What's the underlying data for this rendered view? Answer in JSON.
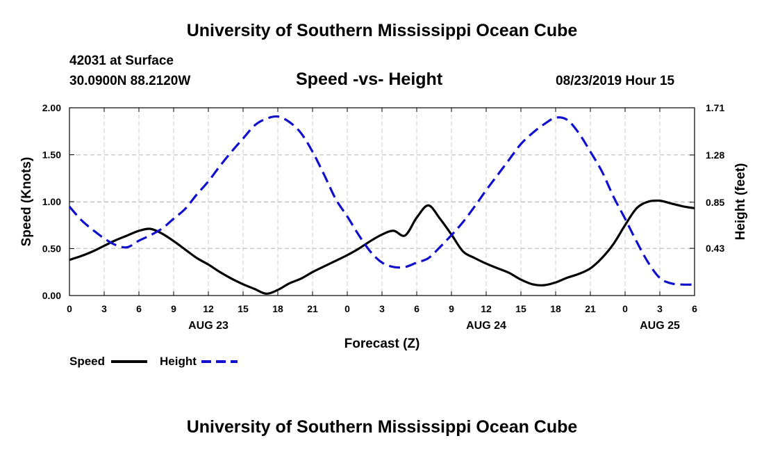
{
  "header": {
    "title": "University of Southern Mississippi Ocean Cube",
    "station": "42031 at Surface",
    "coords": "30.0900N 88.2120W",
    "chart_title": "Speed -vs- Height",
    "datetime": "08/23/2019 Hour 15"
  },
  "footer": {
    "title": "University of Southern Mississippi Ocean Cube"
  },
  "colors": {
    "speed": "#000000",
    "height": "#1010cc",
    "grid": "#c8c8c8"
  },
  "chart_data": {
    "type": "line",
    "title": "Speed -vs- Height",
    "xlabel": "Forecast (Z)",
    "ylabel": "Speed (Knots)",
    "y2label": "Height (feet)",
    "xlim": [
      0,
      54
    ],
    "ylim": [
      0,
      2.0
    ],
    "y2lim": [
      0,
      1.71
    ],
    "x_ticks": [
      0,
      3,
      6,
      9,
      12,
      15,
      18,
      21,
      24,
      27,
      30,
      33,
      36,
      39,
      42,
      45,
      48,
      51,
      54
    ],
    "x_tick_labels": [
      "0",
      "3",
      "6",
      "9",
      "12",
      "15",
      "18",
      "21",
      "0",
      "3",
      "6",
      "9",
      "12",
      "15",
      "18",
      "21",
      "0",
      "3",
      "6"
    ],
    "y_ticks": [
      0,
      0.5,
      1.0,
      1.5,
      2.0
    ],
    "y_tick_labels": [
      "0.00",
      "0.50",
      "1.00",
      "1.50",
      "2.00"
    ],
    "y2_ticks": [
      0.43,
      0.85,
      1.28,
      1.71
    ],
    "y2_tick_labels": [
      "0.43",
      "0.85",
      "1.28",
      "1.71"
    ],
    "date_labels": [
      {
        "x": 12,
        "label": "AUG 23"
      },
      {
        "x": 36,
        "label": "AUG 24"
      },
      {
        "x": 51,
        "label": "AUG 25"
      }
    ],
    "grid": true,
    "legend_position": "bottom-left",
    "series": [
      {
        "name": "Speed",
        "axis": "left",
        "style": "solid",
        "x": [
          0,
          1,
          2,
          3,
          4,
          5,
          6,
          7,
          8,
          9,
          10,
          11,
          12,
          13,
          14,
          15,
          16,
          17,
          18,
          19,
          20,
          21,
          22,
          23,
          24,
          25,
          26,
          27,
          28,
          29,
          30,
          31,
          32,
          33,
          34,
          35,
          36,
          37,
          38,
          39,
          40,
          41,
          42,
          43,
          44,
          45,
          46,
          47,
          48,
          49,
          50,
          51,
          52,
          53,
          54
        ],
        "values": [
          0.38,
          0.42,
          0.47,
          0.53,
          0.59,
          0.64,
          0.69,
          0.71,
          0.66,
          0.58,
          0.49,
          0.4,
          0.33,
          0.25,
          0.18,
          0.12,
          0.07,
          0.02,
          0.06,
          0.13,
          0.18,
          0.25,
          0.31,
          0.37,
          0.43,
          0.5,
          0.58,
          0.65,
          0.69,
          0.64,
          0.83,
          0.96,
          0.82,
          0.65,
          0.47,
          0.4,
          0.34,
          0.29,
          0.24,
          0.17,
          0.12,
          0.11,
          0.14,
          0.19,
          0.23,
          0.29,
          0.4,
          0.55,
          0.75,
          0.93,
          1.0,
          1.01,
          0.98,
          0.95,
          0.93
        ]
      },
      {
        "name": "Height",
        "axis": "right",
        "style": "dashed",
        "x": [
          0,
          1,
          2,
          3,
          4,
          5,
          6,
          7,
          8,
          9,
          10,
          11,
          12,
          13,
          14,
          15,
          16,
          17,
          18,
          19,
          20,
          21,
          22,
          23,
          24,
          25,
          26,
          27,
          28,
          29,
          30,
          31,
          32,
          33,
          34,
          35,
          36,
          37,
          38,
          39,
          40,
          41,
          42,
          43,
          44,
          45,
          46,
          47,
          48,
          49,
          50,
          51,
          52,
          53,
          54
        ],
        "values": [
          0.81,
          0.69,
          0.6,
          0.52,
          0.46,
          0.44,
          0.5,
          0.55,
          0.61,
          0.7,
          0.79,
          0.92,
          1.04,
          1.18,
          1.31,
          1.43,
          1.55,
          1.61,
          1.63,
          1.58,
          1.48,
          1.31,
          1.1,
          0.88,
          0.72,
          0.55,
          0.4,
          0.3,
          0.26,
          0.26,
          0.3,
          0.34,
          0.44,
          0.55,
          0.67,
          0.81,
          0.96,
          1.1,
          1.24,
          1.38,
          1.48,
          1.56,
          1.62,
          1.6,
          1.48,
          1.31,
          1.13,
          0.9,
          0.7,
          0.49,
          0.3,
          0.16,
          0.11,
          0.1,
          0.1
        ]
      }
    ]
  }
}
